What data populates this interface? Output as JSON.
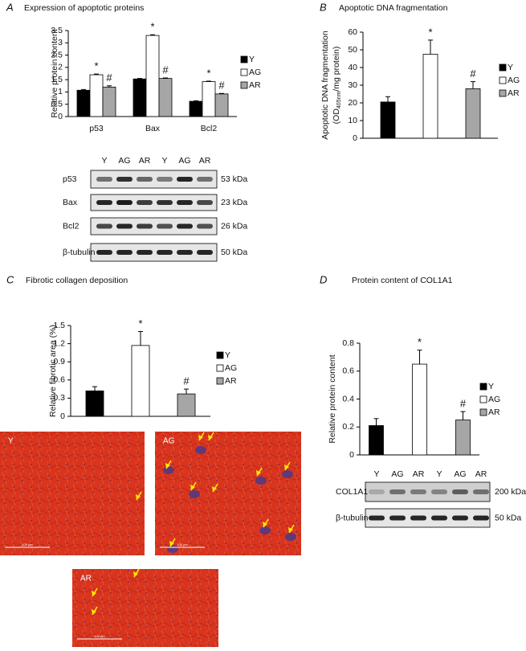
{
  "chart_data": [
    {
      "type": "bar",
      "panel": "A",
      "title": "Expression of apoptotic proteins",
      "y_label": "Relative protein content",
      "categories": [
        "p53",
        "Bax",
        "Bcl2"
      ],
      "series": [
        {
          "name": "Y",
          "color": "#000000",
          "values": [
            1.07,
            1.53,
            0.62
          ],
          "errors": [
            0.03,
            0.02,
            0.02
          ]
        },
        {
          "name": "AG",
          "color": "#ffffff",
          "values": [
            1.7,
            3.3,
            1.42
          ],
          "errors": [
            0.03,
            0.03,
            0.02
          ],
          "markers": [
            "*",
            "*",
            "*"
          ]
        },
        {
          "name": "AR",
          "color": "#a6a6a6",
          "values": [
            1.2,
            1.55,
            0.92
          ],
          "errors": [
            0.05,
            0.02,
            0.02
          ],
          "markers": [
            "#",
            "#",
            "#"
          ]
        }
      ],
      "ylim": [
        0,
        3.5
      ],
      "yticks": [
        0,
        0.5,
        1,
        1.5,
        2,
        2.5,
        3,
        3.5
      ],
      "legend": "right"
    },
    {
      "type": "bar",
      "panel": "B",
      "title": "Apoptotic DNA fragmentation",
      "y_label": [
        "Apoptotic DNA fragmentation",
        "(OD",
        "405nm",
        "/mg protein)"
      ],
      "categories": [
        null
      ],
      "series": [
        {
          "name": "Y",
          "color": "#000000",
          "values": [
            20.5
          ],
          "errors": [
            3
          ]
        },
        {
          "name": "AG",
          "color": "#ffffff",
          "values": [
            47.5
          ],
          "errors": [
            8
          ],
          "markers": [
            "*"
          ]
        },
        {
          "name": "AR",
          "color": "#a6a6a6",
          "values": [
            28
          ],
          "errors": [
            4
          ],
          "markers": [
            "#"
          ]
        }
      ],
      "ylim": [
        0,
        60
      ],
      "yticks": [
        0,
        10,
        20,
        30,
        40,
        50,
        60
      ],
      "legend": "right"
    },
    {
      "type": "bar",
      "panel": "C",
      "title": "Fibrotic collagen deposition",
      "y_label": "Relative fibrotic area (%)",
      "categories": [
        null
      ],
      "series": [
        {
          "name": "Y",
          "color": "#000000",
          "values": [
            0.42
          ],
          "errors": [
            0.07
          ]
        },
        {
          "name": "AG",
          "color": "#ffffff",
          "values": [
            1.17
          ],
          "errors": [
            0.23
          ],
          "markers": [
            "*"
          ]
        },
        {
          "name": "AR",
          "color": "#a6a6a6",
          "values": [
            0.37
          ],
          "errors": [
            0.08
          ],
          "markers": [
            "#"
          ]
        }
      ],
      "ylim": [
        0,
        1.5
      ],
      "yticks": [
        0,
        0.3,
        0.6,
        0.9,
        1.2,
        1.5
      ],
      "legend": "right"
    },
    {
      "type": "bar",
      "panel": "D",
      "title": "Protein content of COL1A1",
      "y_label": "Relative protein content",
      "categories": [
        null
      ],
      "series": [
        {
          "name": "Y",
          "color": "#000000",
          "values": [
            0.21
          ],
          "errors": [
            0.05
          ]
        },
        {
          "name": "AG",
          "color": "#ffffff",
          "values": [
            0.65
          ],
          "errors": [
            0.1
          ],
          "markers": [
            "*"
          ]
        },
        {
          "name": "AR",
          "color": "#a6a6a6",
          "values": [
            0.25
          ],
          "errors": [
            0.06
          ],
          "markers": [
            "#"
          ]
        }
      ],
      "ylim": [
        0,
        0.8
      ],
      "yticks": [
        0,
        0.2,
        0.4,
        0.6,
        0.8
      ],
      "legend": "right"
    }
  ],
  "blots": [
    {
      "panel": "A",
      "lanes": [
        "Y",
        "AG",
        "AR",
        "Y",
        "AG",
        "AR"
      ],
      "rows": [
        {
          "label": "p53",
          "size": "53 kDa"
        },
        {
          "label": "Bax",
          "size": "23 kDa"
        },
        {
          "label": "Bcl2",
          "size": "26 kDa"
        },
        {
          "label": "β-tubulin",
          "size": "50 kDa"
        }
      ]
    },
    {
      "panel": "D",
      "lanes": [
        "Y",
        "AG",
        "AR",
        "Y",
        "AG",
        "AR"
      ],
      "rows": [
        {
          "label": "COL1A1",
          "size": "200 kDa"
        },
        {
          "label": "β-tubulin",
          "size": "50 kDa"
        }
      ]
    }
  ],
  "micrographs": [
    {
      "label": "Y",
      "scale_bar": "100 μm"
    },
    {
      "label": "AG",
      "scale_bar": "100 μm"
    },
    {
      "label": "AR",
      "scale_bar": "100 μm"
    }
  ]
}
